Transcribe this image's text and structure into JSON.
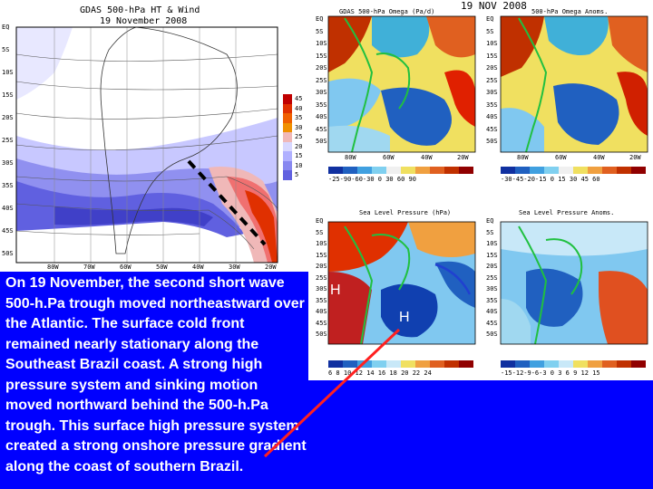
{
  "main_panel": {
    "title": "GDAS 500-hPa HT & Wind",
    "date": "19 November 2008",
    "lat_labels": [
      "EQ",
      "5S",
      "10S",
      "15S",
      "20S",
      "25S",
      "30S",
      "35S",
      "40S",
      "45S",
      "50S"
    ],
    "lon_labels": [
      "80W",
      "70W",
      "60W",
      "50W",
      "40W",
      "30W",
      "20W"
    ],
    "colorbar_labels": [
      "45",
      "40",
      "35",
      "30",
      "25",
      "20",
      "15",
      "10",
      "5"
    ],
    "colorbar_colors": [
      "#c00000",
      "#e03000",
      "#f06000",
      "#f09000",
      "#f0b8b8",
      "#d8d8ff",
      "#b0b0ff",
      "#8888f0",
      "#6060e0"
    ]
  },
  "date_stamp": "19 NOV 2008",
  "omega_panel": {
    "title": "GDAS 500-hPa Omega (Pa/d)",
    "colorbar_labels": "-25-90-60-30 0 30 60 90",
    "lon_labels": [
      "80W",
      "60W",
      "40W",
      "20W"
    ]
  },
  "omega_anom_panel": {
    "title": "500-hPa Omega Anoms.",
    "colorbar_labels": "-30-45-20-15 0 15 30 45 60",
    "lon_labels": [
      "80W",
      "60W",
      "40W",
      "20W"
    ]
  },
  "slp_panel": {
    "title": "Sea Level Pressure (hPa)",
    "colorbar_labels": "6 8 10 12 14 16 18 20 22 24"
  },
  "slp_anom_panel": {
    "title": "Sea Level Pressure Anoms.",
    "colorbar_labels": "-15-12-9-6-3 0 3 6 9 12 15"
  },
  "lat_labels_small": [
    "EQ",
    "5S",
    "10S",
    "15S",
    "20S",
    "25S",
    "30S",
    "35S",
    "40S",
    "45S",
    "50S"
  ],
  "pressure_markers": [
    "H",
    "H"
  ],
  "caption": "On 19 November, the second short wave 500-h.Pa trough moved northeastward over the Atlantic. The surface cold front remained nearly stationary along the Southeast Brazil coast. A strong high pressure system and sinking motion moved northward behind the 500-h.Pa trough. This surface high pressure system created a strong onshore pressure gradient along the coast of southern Brazil.",
  "colors": {
    "background": "#0000ff",
    "arrow": "#ff2020",
    "front": "#2040d0"
  }
}
